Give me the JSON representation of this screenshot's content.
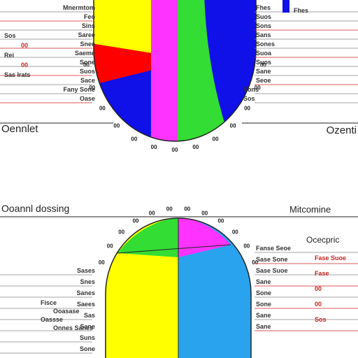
{
  "headers": {
    "left_top": "Oennlet",
    "right_top": "Ozenti",
    "left_bottom": "Ooannl dossing",
    "right_bottom": "Mitcomine",
    "right_bottom_sub": "Ocecpric"
  },
  "colors": {
    "yellow": "#ffff00",
    "magenta": "#ff33ff",
    "green": "#33dd33",
    "blue": "#1010e8",
    "red": "#ff0000",
    "sky": "#29a3ee",
    "leader_red": "#cc2222",
    "leader_grey": "#888888"
  },
  "chart_data": [
    {
      "type": "pie",
      "title": "",
      "slices": [
        {
          "color": "yellow",
          "value": 22
        },
        {
          "color": "red",
          "value": 5
        },
        {
          "color": "blue",
          "value": 16
        },
        {
          "color": "magenta",
          "value": 12
        },
        {
          "color": "green",
          "value": 14
        },
        {
          "color": "blue",
          "value": 31
        }
      ],
      "tick_labels": [
        "00",
        "00",
        "00",
        "00",
        "00",
        "00",
        "00",
        "00",
        "00",
        "00",
        "00",
        "00",
        "00"
      ],
      "left_labels": [
        "Mnermtom",
        "Feo",
        "Sins",
        "Saree",
        "Snee",
        "Saeme",
        "Sone",
        "Suos",
        "Sace",
        "Fany Sone",
        "Oase"
      ],
      "left_legend": [
        "Sos",
        "00",
        "Rei",
        "00",
        "Sas Irats"
      ],
      "right_labels": [
        "Fhes",
        "Suos",
        "Sons",
        "Sans",
        "Sones",
        "Suoa",
        "Suos",
        "Sane",
        "Seoe",
        "Sons",
        "Sos"
      ],
      "right_legend": [
        "Fhes"
      ]
    },
    {
      "type": "pie",
      "title": "",
      "slices": [
        {
          "color": "green",
          "value": 12
        },
        {
          "color": "magenta",
          "value": 10
        },
        {
          "color": "sky",
          "value": 38
        },
        {
          "color": "yellow",
          "value": 40
        }
      ],
      "tick_labels": [
        "00",
        "00",
        "00",
        "00",
        "00",
        "00",
        "00",
        "00",
        "00",
        "00",
        "00",
        "00"
      ],
      "left_labels": [
        "Sases",
        "Snes",
        "Sanes",
        "Saees",
        "Sas",
        "Sane",
        "Suns",
        "Sone"
      ],
      "left_legend": [
        "Fisce",
        "Ooasase",
        "Oassse",
        "Onnes Sanes"
      ],
      "right_labels": [
        "Fanse Seoe",
        "Sase Sone",
        "Sase Suoe",
        "Sane",
        "Sone",
        "Sone",
        "Sane",
        "Sane"
      ],
      "right_legend": [
        "Fase Suoe",
        "Fase",
        "00",
        "00",
        "Sos"
      ]
    }
  ]
}
